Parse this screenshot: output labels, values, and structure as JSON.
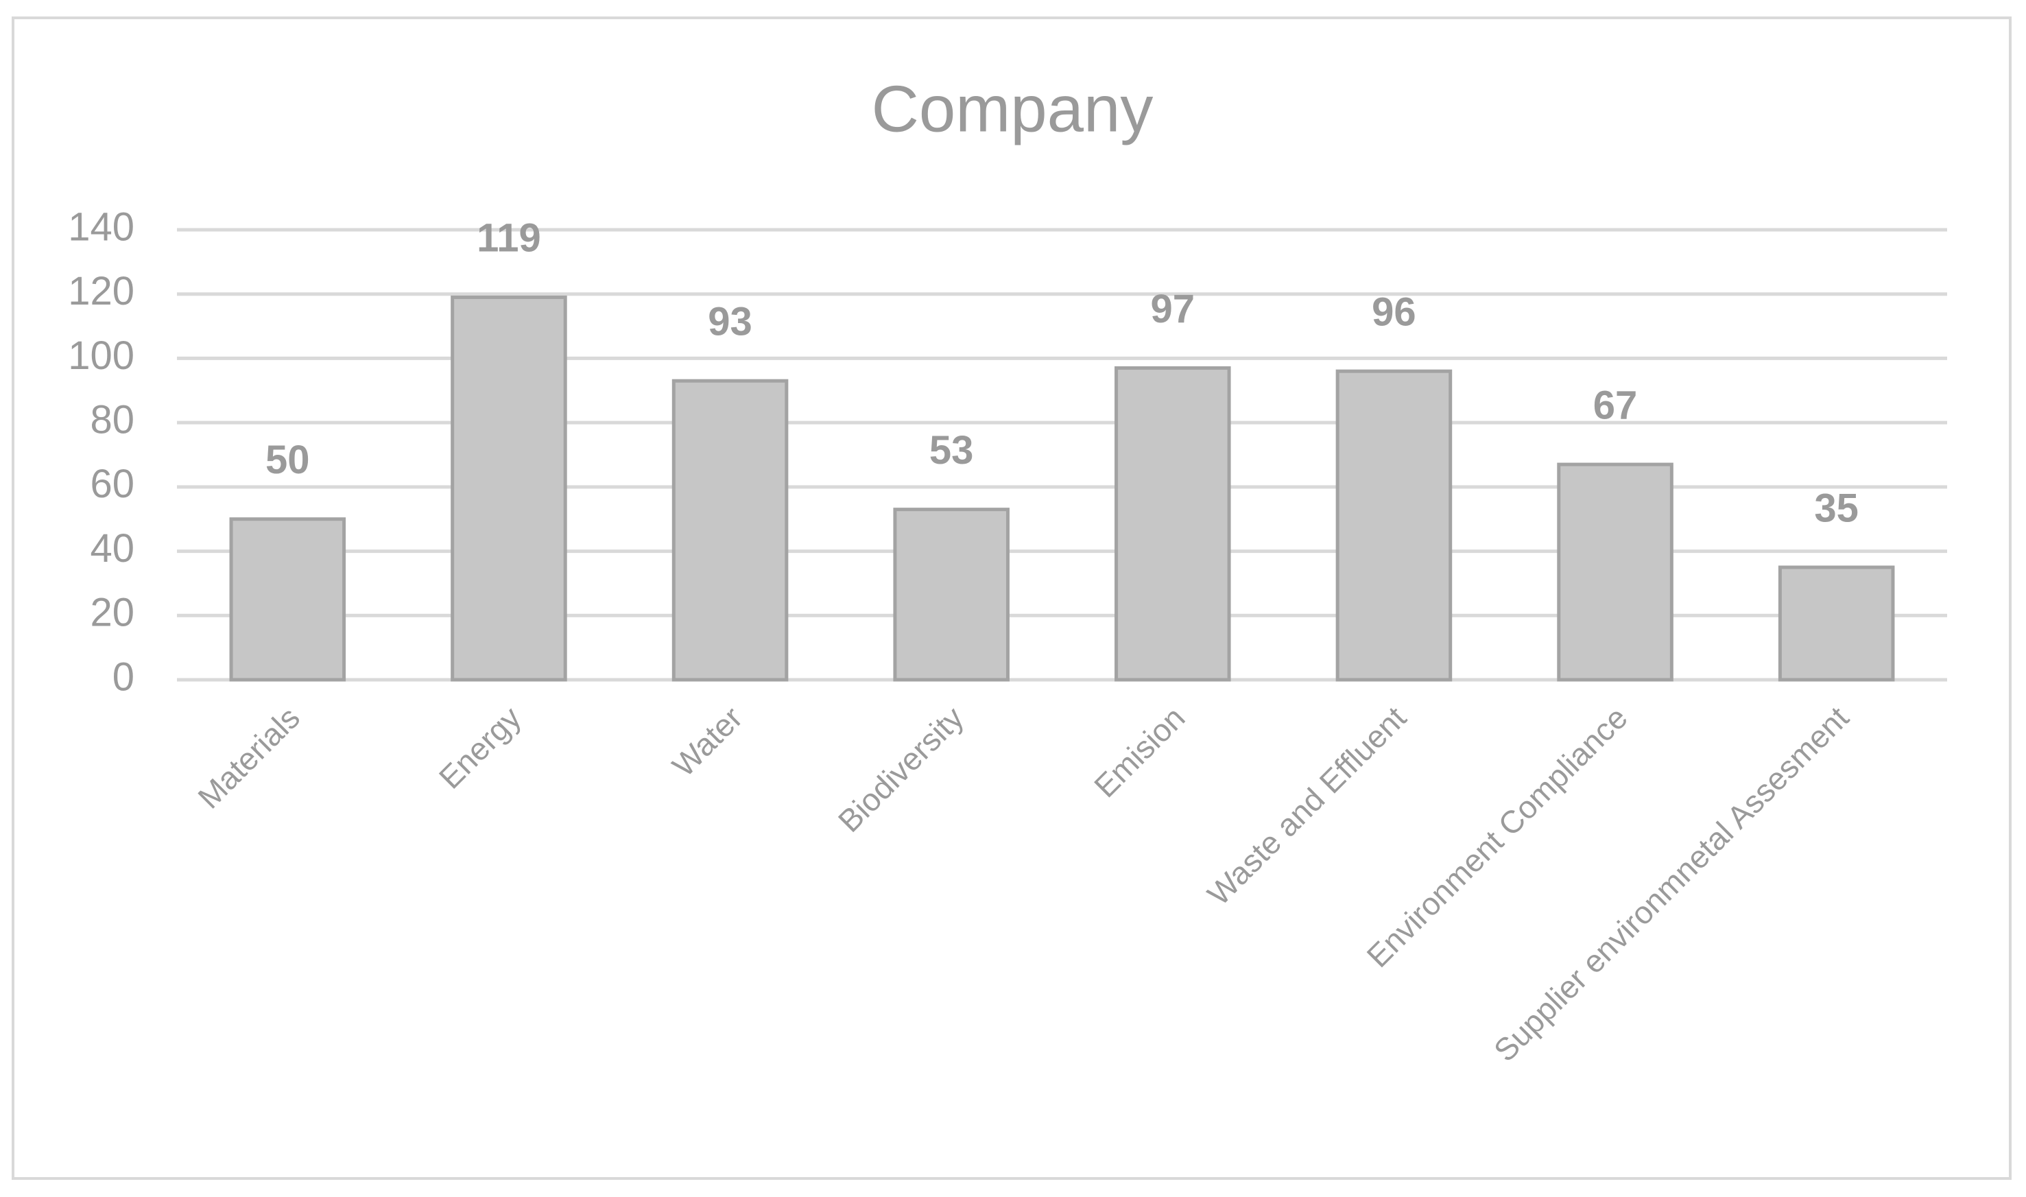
{
  "chart_data": {
    "type": "bar",
    "title": "Company",
    "categories": [
      "Materials",
      "Energy",
      "Water",
      "Biodiversity",
      "Emision",
      "Waste and Effluent",
      "Environment Compliance",
      "Supplier environmnetal Assesment"
    ],
    "values": [
      50,
      119,
      93,
      53,
      97,
      96,
      67,
      35
    ],
    "color": "#c6c6c6",
    "ylim": [
      0,
      140
    ],
    "yticks": [
      0,
      20,
      40,
      60,
      80,
      100,
      120,
      140
    ],
    "grid": true
  }
}
